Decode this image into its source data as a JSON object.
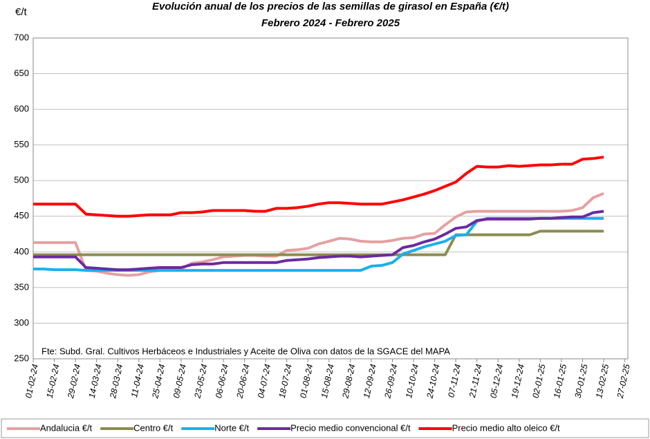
{
  "chart_data": {
    "type": "line",
    "title": "Evolución anual de los precios de las semillas de girasol en España (€/t)",
    "subtitle": "Febrero 2024 - Febrero 2025",
    "y_label": "€/t",
    "annotation": "Fte: Subd. Gral. Cultivos Herbáceos e Industriales y Aceite de Oliva con datos de la SGACE del MAPA",
    "x": [
      "01-02-24",
      "08-02-24",
      "15-02-24",
      "22-02-24",
      "29-02-24",
      "07-03-24",
      "14-03-24",
      "21-03-24",
      "28-03-24",
      "04-04-24",
      "11-04-24",
      "18-04-24",
      "25-04-24",
      "02-05-24",
      "09-05-24",
      "16-05-24",
      "23-05-24",
      "30-05-24",
      "06-06-24",
      "13-06-24",
      "20-06-24",
      "27-06-24",
      "04-07-24",
      "11-07-24",
      "18-07-24",
      "25-07-24",
      "01-08-24",
      "08-08-24",
      "15-08-24",
      "22-08-24",
      "29-08-24",
      "05-09-24",
      "12-09-24",
      "19-09-24",
      "26-09-24",
      "03-10-24",
      "10-10-24",
      "17-10-24",
      "24-10-24",
      "31-10-24",
      "07-11-24",
      "14-11-24",
      "21-11-24",
      "28-11-24",
      "05-12-24",
      "12-12-24",
      "19-12-24",
      "26-12-24",
      "02-01-25",
      "09-01-25",
      "16-01-25",
      "23-01-25",
      "30-01-25",
      "06-02-25",
      "13-02-25"
    ],
    "series": [
      {
        "name": "Andalucia €/t",
        "color": "#e6a0a0",
        "values": [
          413,
          413,
          413,
          413,
          413,
          374,
          373,
          370,
          368,
          367,
          368,
          372,
          374,
          375,
          376,
          384,
          386,
          389,
          393,
          394,
          395,
          395,
          394,
          394,
          402,
          403,
          405,
          411,
          415,
          419,
          418,
          415,
          414,
          414,
          416,
          419,
          420,
          425,
          426,
          438,
          449,
          456,
          457,
          457,
          457,
          457,
          457,
          457,
          457,
          457,
          457,
          458,
          462,
          476,
          482
        ]
      },
      {
        "name": "Centro €/t",
        "color": "#8c8c50",
        "values": [
          396,
          396,
          396,
          396,
          396,
          396,
          396,
          396,
          396,
          396,
          396,
          396,
          396,
          396,
          396,
          396,
          396,
          396,
          396,
          396,
          396,
          396,
          396,
          396,
          396,
          396,
          396,
          396,
          396,
          396,
          396,
          396,
          396,
          396,
          396,
          396,
          396,
          396,
          396,
          396,
          424,
          424,
          424,
          424,
          424,
          424,
          424,
          424,
          429,
          429,
          429,
          429,
          429,
          429,
          429
        ]
      },
      {
        "name": "Norte €/t",
        "color": "#1ab0ec",
        "values": [
          376,
          376,
          375,
          375,
          375,
          374,
          374,
          374,
          374,
          374,
          374,
          374,
          374,
          374,
          374,
          374,
          374,
          374,
          374,
          374,
          374,
          374,
          374,
          374,
          374,
          374,
          374,
          374,
          374,
          374,
          374,
          374,
          380,
          381,
          385,
          397,
          402,
          407,
          411,
          415,
          423,
          424,
          443,
          447,
          447,
          447,
          447,
          447,
          447,
          447,
          447,
          447,
          447,
          447,
          447
        ]
      },
      {
        "name": "Precio medio convencional €/t",
        "color": "#6a2aa0",
        "values": [
          393,
          393,
          393,
          393,
          393,
          378,
          377,
          376,
          375,
          375,
          376,
          377,
          378,
          378,
          378,
          382,
          383,
          383,
          385,
          385,
          385,
          385,
          385,
          385,
          388,
          389,
          390,
          392,
          393,
          394,
          394,
          393,
          394,
          395,
          396,
          406,
          409,
          414,
          418,
          425,
          433,
          435,
          444,
          446,
          446,
          446,
          446,
          446,
          447,
          447,
          448,
          449,
          449,
          455,
          457
        ]
      },
      {
        "name": "Precio medio alto oleico €/t",
        "color": "#ff0000",
        "values": [
          467,
          467,
          467,
          467,
          467,
          453,
          452,
          451,
          450,
          450,
          451,
          452,
          452,
          452,
          455,
          455,
          456,
          458,
          458,
          458,
          458,
          457,
          457,
          461,
          461,
          462,
          464,
          467,
          469,
          469,
          468,
          467,
          467,
          467,
          470,
          473,
          477,
          481,
          486,
          492,
          498,
          510,
          520,
          519,
          519,
          521,
          520,
          521,
          522,
          522,
          523,
          523,
          530,
          531,
          533
        ]
      }
    ],
    "xlim": [
      "01-02-24",
      "01-03-25"
    ],
    "xticks": [
      "01-02-24",
      "15-02-24",
      "29-02-24",
      "14-03-24",
      "28-03-24",
      "11-04-24",
      "25-04-24",
      "09-05-24",
      "23-05-24",
      "06-06-24",
      "20-06-24",
      "04-07-24",
      "18-07-24",
      "01-08-24",
      "15-08-24",
      "29-08-24",
      "12-09-24",
      "26-09-24",
      "10-10-24",
      "24-10-24",
      "07-11-24",
      "21-11-24",
      "05-12-24",
      "19-12-24",
      "02-01-25",
      "16-01-25",
      "30-01-25",
      "13-02-25",
      "27-02-25"
    ],
    "ylim": [
      250,
      700
    ],
    "yticks": [
      250,
      300,
      350,
      400,
      450,
      500,
      550,
      600,
      650,
      700
    ],
    "grid": true
  }
}
